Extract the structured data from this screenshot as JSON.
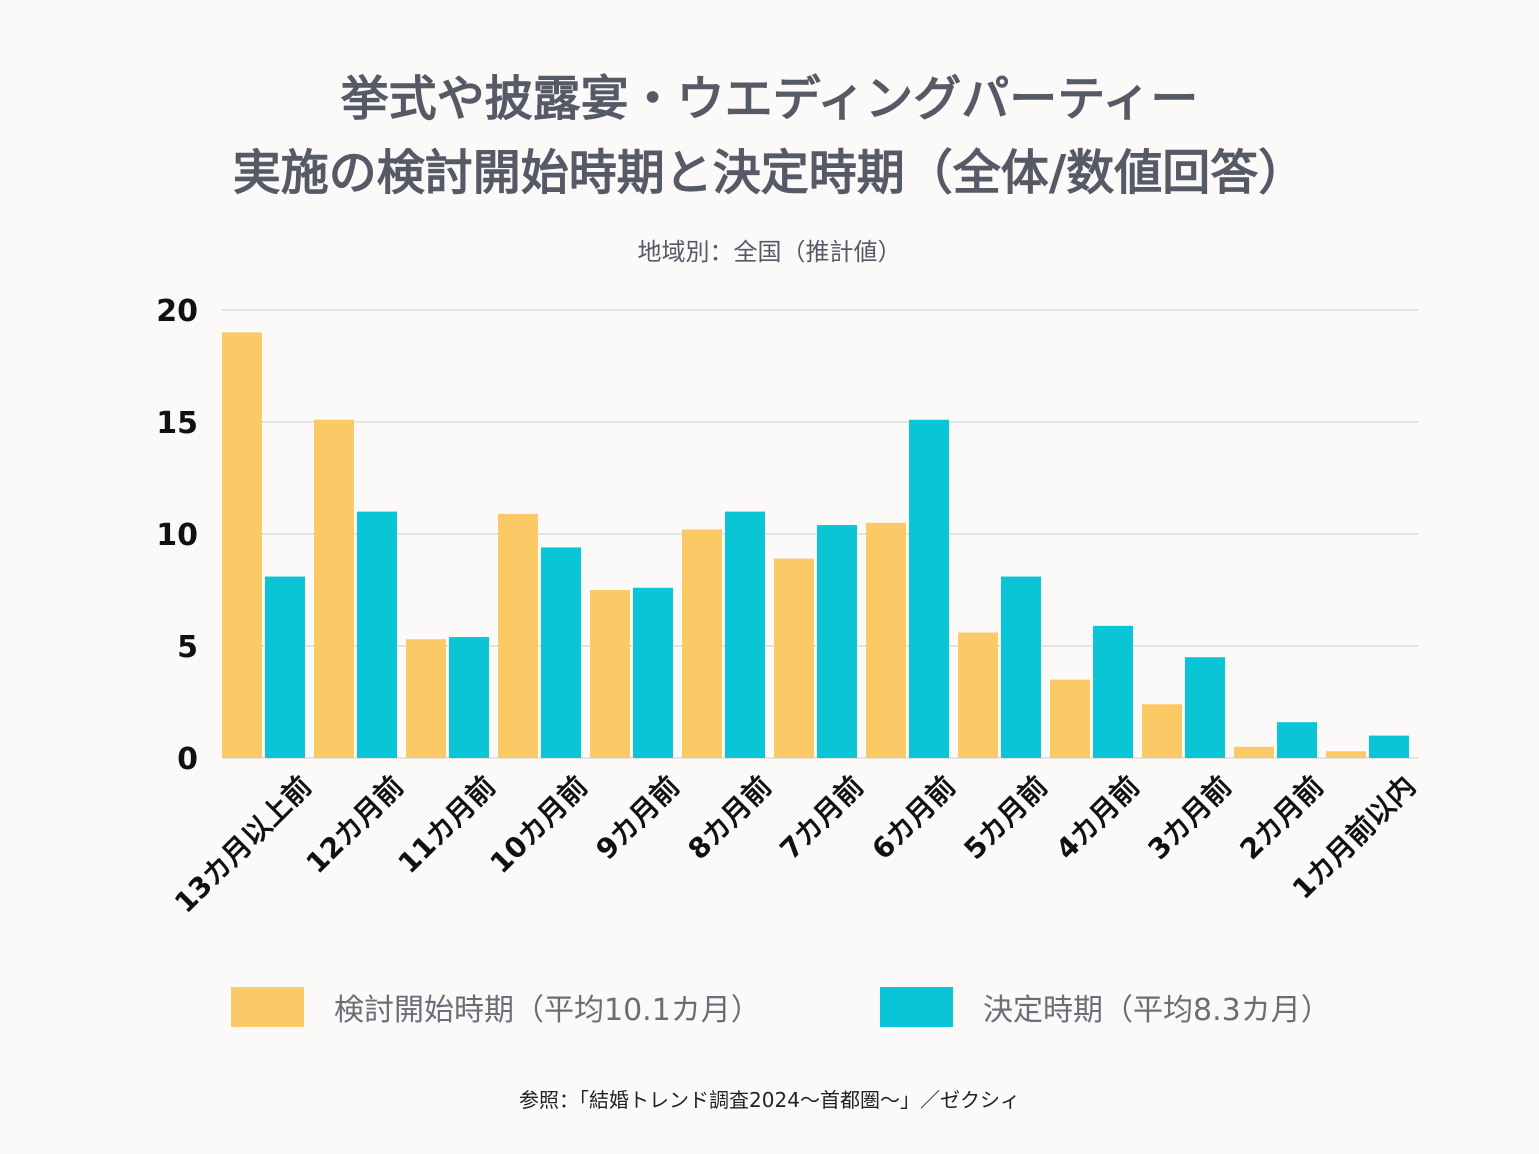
{
  "header": {
    "title_line1": "挙式や披露宴・ウエディングパーティー",
    "title_line2": "実施の検討開始時期と決定時期（全体/数値回答）",
    "subtitle": "地域別：全国（推計値）"
  },
  "legend": {
    "series1_label": "検討開始時期（平均10.1カ月）",
    "series2_label": "決定時期（平均8.3カ月）"
  },
  "source": "参照：「結婚トレンド調査2024〜首都圏〜」／ゼクシィ",
  "colors": {
    "series1": "#fbc965",
    "series2": "#0ac5d6",
    "grid": "#d6d6d6"
  },
  "chart_data": {
    "type": "bar",
    "categories": [
      "13カ月以上前",
      "12カ月前",
      "11カ月前",
      "10カ月前",
      "9カ月前",
      "8カ月前",
      "7カ月前",
      "6カ月前",
      "5カ月前",
      "4カ月前",
      "3カ月前",
      "2カ月前",
      "1カ月前以内"
    ],
    "series": [
      {
        "name": "検討開始時期（平均10.1カ月）",
        "values": [
          19.0,
          15.1,
          5.3,
          10.9,
          7.5,
          10.2,
          8.9,
          10.5,
          5.6,
          3.5,
          2.4,
          0.5,
          0.3
        ]
      },
      {
        "name": "決定時期（平均8.3カ月）",
        "values": [
          8.1,
          11.0,
          5.4,
          9.4,
          7.6,
          11.0,
          10.4,
          15.1,
          8.1,
          5.9,
          4.5,
          1.6,
          1.0
        ]
      }
    ],
    "yticks": [
      0,
      5,
      10,
      15,
      20
    ],
    "ylim": [
      0,
      20
    ],
    "grid": true,
    "legend_position": "bottom"
  }
}
